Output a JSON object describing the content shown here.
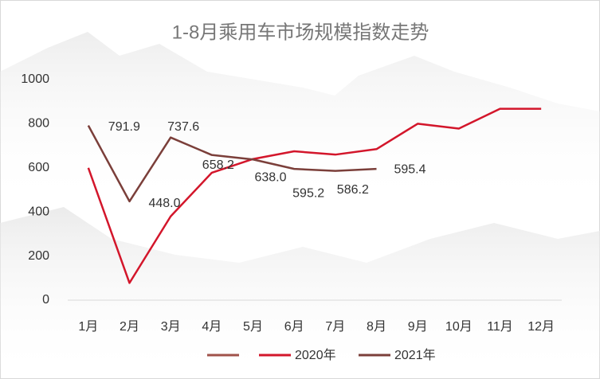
{
  "chart_data": {
    "type": "line",
    "title": "1-8月乘用车市场规模指数走势",
    "categories": [
      "1月",
      "2月",
      "3月",
      "4月",
      "5月",
      "6月",
      "7月",
      "8月",
      "9月",
      "10月",
      "11月",
      "12月"
    ],
    "series": [
      {
        "name": "2020年",
        "color": "#d3162b",
        "values": [
          600,
          78,
          380,
          578,
          640,
          675,
          660,
          685,
          800,
          778,
          868,
          868
        ]
      },
      {
        "name": "2021年",
        "color": "#7b3f3a",
        "values": [
          791.9,
          448.0,
          737.6,
          658.2,
          638.0,
          595.2,
          586.2,
          595.4,
          null,
          null,
          null,
          null
        ],
        "value_labels": [
          "791.9",
          "448.0",
          "737.6",
          "658.2",
          "638.0",
          "595.2",
          "586.2",
          "595.4",
          null,
          null,
          null,
          null
        ]
      }
    ],
    "ylim": [
      0,
      1000
    ],
    "yticks": [
      0,
      200,
      400,
      600,
      800,
      1000
    ],
    "grid": false,
    "legend": "bottom"
  }
}
